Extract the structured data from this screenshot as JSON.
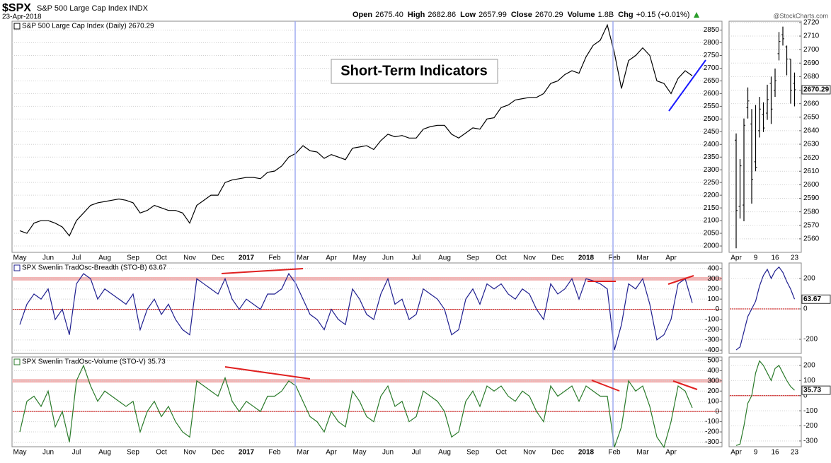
{
  "header": {
    "symbol": "$SPX",
    "name": "S&P 500 Large Cap Index INDX",
    "date": "23-Apr-2018",
    "quote": [
      {
        "label": "Open",
        "value": "2675.40"
      },
      {
        "label": "High",
        "value": "2682.86"
      },
      {
        "label": "Low",
        "value": "2657.99"
      },
      {
        "label": "Close",
        "value": "2670.29"
      },
      {
        "label": "Volume",
        "value": "1.8B"
      },
      {
        "label": "Chg",
        "value": "+0.15 (+0.01%)"
      }
    ],
    "credit": "@StockCharts.com"
  },
  "chart_data": [
    {
      "type": "line",
      "title": "S&P 500 Large Cap Index (Daily) 2670.29",
      "annotation": "Short-Term Indicators",
      "color": "#000000",
      "grid": true,
      "categories": [
        "May",
        null,
        null,
        null,
        "Jun",
        null,
        null,
        null,
        "Jul",
        null,
        null,
        null,
        "Aug",
        null,
        null,
        null,
        "Sep",
        null,
        null,
        null,
        "Oct",
        null,
        null,
        null,
        "Nov",
        null,
        null,
        null,
        "Dec",
        null,
        null,
        null,
        "2017",
        null,
        null,
        null,
        "Feb",
        null,
        null,
        null,
        "Mar",
        null,
        null,
        null,
        "Apr",
        null,
        null,
        null,
        "May",
        null,
        null,
        null,
        "Jun",
        null,
        null,
        null,
        "Jul",
        null,
        null,
        null,
        "Aug",
        null,
        null,
        null,
        "Sep",
        null,
        null,
        null,
        "Oct",
        null,
        null,
        null,
        "Nov",
        null,
        null,
        null,
        "Dec",
        null,
        null,
        null,
        "2018",
        null,
        null,
        null,
        "Feb",
        null,
        null,
        null,
        "Mar",
        null,
        null,
        null,
        "Apr",
        null,
        null,
        null
      ],
      "values": [
        2060,
        2050,
        2090,
        2100,
        2100,
        2090,
        2075,
        2040,
        2100,
        2130,
        2160,
        2170,
        2175,
        2180,
        2185,
        2180,
        2170,
        2130,
        2140,
        2160,
        2150,
        2140,
        2140,
        2130,
        2090,
        2160,
        2180,
        2200,
        2200,
        2250,
        2260,
        2265,
        2270,
        2270,
        2265,
        2290,
        2295,
        2315,
        2350,
        2365,
        2395,
        2375,
        2370,
        2345,
        2360,
        2350,
        2340,
        2385,
        2390,
        2395,
        2380,
        2415,
        2440,
        2430,
        2435,
        2425,
        2425,
        2460,
        2470,
        2475,
        2475,
        2440,
        2425,
        2445,
        2465,
        2460,
        2500,
        2505,
        2545,
        2555,
        2575,
        2580,
        2585,
        2585,
        2600,
        2640,
        2650,
        2675,
        2690,
        2680,
        2745,
        2790,
        2810,
        2870,
        2760,
        2620,
        2730,
        2750,
        2780,
        2750,
        2650,
        2640,
        2600,
        2660,
        2690,
        2670
      ],
      "ylim": [
        1975,
        2885
      ],
      "yticks": [
        2000,
        2050,
        2100,
        2150,
        2200,
        2250,
        2300,
        2350,
        2400,
        2450,
        2500,
        2550,
        2600,
        2650,
        2700,
        2750,
        2800,
        2850
      ]
    },
    {
      "type": "line",
      "title": "SPX Swenlin TradOsc-Breadth (STO-B) 63.67",
      "color": "#1f1f8f",
      "grid": true,
      "values": [
        -150,
        50,
        150,
        100,
        200,
        -100,
        0,
        -250,
        250,
        350,
        300,
        100,
        200,
        150,
        100,
        50,
        150,
        -200,
        0,
        100,
        -50,
        50,
        -100,
        -200,
        -250,
        300,
        250,
        200,
        150,
        300,
        100,
        0,
        100,
        50,
        0,
        150,
        150,
        200,
        350,
        250,
        100,
        -50,
        -100,
        -200,
        0,
        -100,
        -150,
        200,
        100,
        -50,
        -100,
        150,
        300,
        50,
        100,
        -100,
        -50,
        200,
        150,
        100,
        0,
        -250,
        -200,
        100,
        200,
        50,
        250,
        200,
        250,
        150,
        100,
        200,
        150,
        0,
        -100,
        250,
        150,
        200,
        300,
        100,
        300,
        280,
        250,
        200,
        -400,
        -150,
        250,
        200,
        300,
        50,
        -300,
        -250,
        -100,
        250,
        300,
        63.67
      ],
      "ylim": [
        -433,
        455
      ],
      "yticks": [
        -400,
        -300,
        -200,
        -100,
        0,
        100,
        200,
        300,
        400
      ],
      "reference_lines": [
        {
          "value": 300,
          "color": "#f2b5b5",
          "band": true
        },
        {
          "value": 0,
          "color": "#cc0000"
        }
      ]
    },
    {
      "type": "line",
      "title": "SPX Swenlin TradOsc-Volume (STO-V) 35.73",
      "color": "#2a7a2a",
      "grid": true,
      "categories": [
        "May",
        null,
        null,
        null,
        "Jun",
        null,
        null,
        null,
        "Jul",
        null,
        null,
        null,
        "Aug",
        null,
        null,
        null,
        "Sep",
        null,
        null,
        null,
        "Oct",
        null,
        null,
        null,
        "Nov",
        null,
        null,
        null,
        "Dec",
        null,
        null,
        null,
        "2017",
        null,
        null,
        null,
        "Feb",
        null,
        null,
        null,
        "Mar",
        null,
        null,
        null,
        "Apr",
        null,
        null,
        null,
        "May",
        null,
        null,
        null,
        "Jun",
        null,
        null,
        null,
        "Jul",
        null,
        null,
        null,
        "Aug",
        null,
        null,
        null,
        "Sep",
        null,
        null,
        null,
        "Oct",
        null,
        null,
        null,
        "Nov",
        null,
        null,
        null,
        "Dec",
        null,
        null,
        null,
        "2018",
        null,
        null,
        null,
        "Feb",
        null,
        null,
        null,
        "Mar",
        null,
        null,
        null,
        "Apr",
        null,
        null,
        null
      ],
      "values": [
        -200,
        100,
        150,
        50,
        200,
        -150,
        0,
        -300,
        300,
        450,
        250,
        100,
        200,
        150,
        100,
        50,
        100,
        -200,
        0,
        100,
        -50,
        50,
        -100,
        -200,
        -250,
        300,
        250,
        200,
        150,
        330,
        100,
        0,
        100,
        50,
        0,
        150,
        150,
        200,
        300,
        250,
        100,
        -50,
        -100,
        -200,
        0,
        -100,
        -150,
        200,
        100,
        -50,
        -100,
        150,
        250,
        50,
        100,
        -100,
        -50,
        200,
        150,
        100,
        0,
        -250,
        -200,
        100,
        200,
        50,
        250,
        200,
        250,
        150,
        100,
        200,
        150,
        0,
        -100,
        250,
        150,
        200,
        250,
        100,
        250,
        200,
        150,
        150,
        -350,
        -150,
        300,
        200,
        250,
        50,
        -250,
        -350,
        -100,
        250,
        200,
        35.73
      ],
      "ylim": [
        -345,
        534
      ],
      "yticks": [
        -300,
        -200,
        -100,
        0,
        100,
        200,
        300,
        400,
        500
      ],
      "reference_lines": [
        {
          "value": 300,
          "color": "#f2b5b5",
          "band": true
        },
        {
          "value": 0,
          "color": "#cc0000"
        }
      ]
    },
    {
      "type": "ohlc",
      "color": "#000000",
      "grid": true,
      "last_value_label": true,
      "categories": [
        "Apr",
        null,
        null,
        null,
        null,
        "9",
        null,
        null,
        null,
        null,
        "16",
        null,
        null,
        null,
        null,
        "23"
      ],
      "open": [
        2633,
        2584,
        2585,
        2657,
        2645,
        2617,
        2640,
        2652,
        2653,
        2675,
        2670,
        2697,
        2711,
        2702,
        2693,
        2675
      ],
      "high": [
        2638,
        2619,
        2649,
        2672,
        2656,
        2659,
        2665,
        2661,
        2674,
        2680,
        2686,
        2713,
        2717,
        2703,
        2693,
        2683
      ],
      "low": [
        2553,
        2575,
        2573,
        2649,
        2586,
        2610,
        2635,
        2639,
        2648,
        2645,
        2665,
        2692,
        2703,
        2681,
        2660,
        2658
      ],
      "close": [
        2581,
        2614,
        2644,
        2662,
        2604,
        2613,
        2656,
        2642,
        2663,
        2656,
        2677,
        2706,
        2708,
        2693,
        2670,
        2670.29
      ],
      "ylim": [
        2550,
        2721
      ],
      "yticks": [
        2560,
        2570,
        2580,
        2590,
        2600,
        2610,
        2620,
        2630,
        2640,
        2650,
        2660,
        2670,
        2680,
        2690,
        2700,
        2710,
        2720
      ]
    },
    {
      "type": "line",
      "color": "#1f1f8f",
      "grid": true,
      "last_value_label": true,
      "values": [
        -270,
        -250,
        -150,
        -50,
        0,
        50,
        150,
        220,
        260,
        200,
        250,
        275,
        240,
        180,
        130,
        63.67
      ],
      "ylim": [
        -293,
        302
      ],
      "yticks": [
        -200,
        0,
        200
      ],
      "reference_lines": [
        {
          "value": 0,
          "color": "#cc0000"
        }
      ]
    },
    {
      "type": "line",
      "color": "#2a7a2a",
      "grid": true,
      "last_value_label": true,
      "categories": [
        "Apr",
        null,
        null,
        null,
        null,
        "9",
        null,
        null,
        null,
        null,
        "16",
        null,
        null,
        null,
        null,
        "23"
      ],
      "values": [
        -330,
        -320,
        -200,
        -50,
        0,
        150,
        230,
        200,
        150,
        100,
        180,
        200,
        150,
        100,
        60,
        35.73
      ],
      "ylim": [
        -338,
        256
      ],
      "yticks": [
        -300,
        -200,
        -100,
        0,
        100,
        200
      ],
      "reference_lines": [
        {
          "value": 0,
          "color": "#cc0000"
        }
      ]
    }
  ]
}
